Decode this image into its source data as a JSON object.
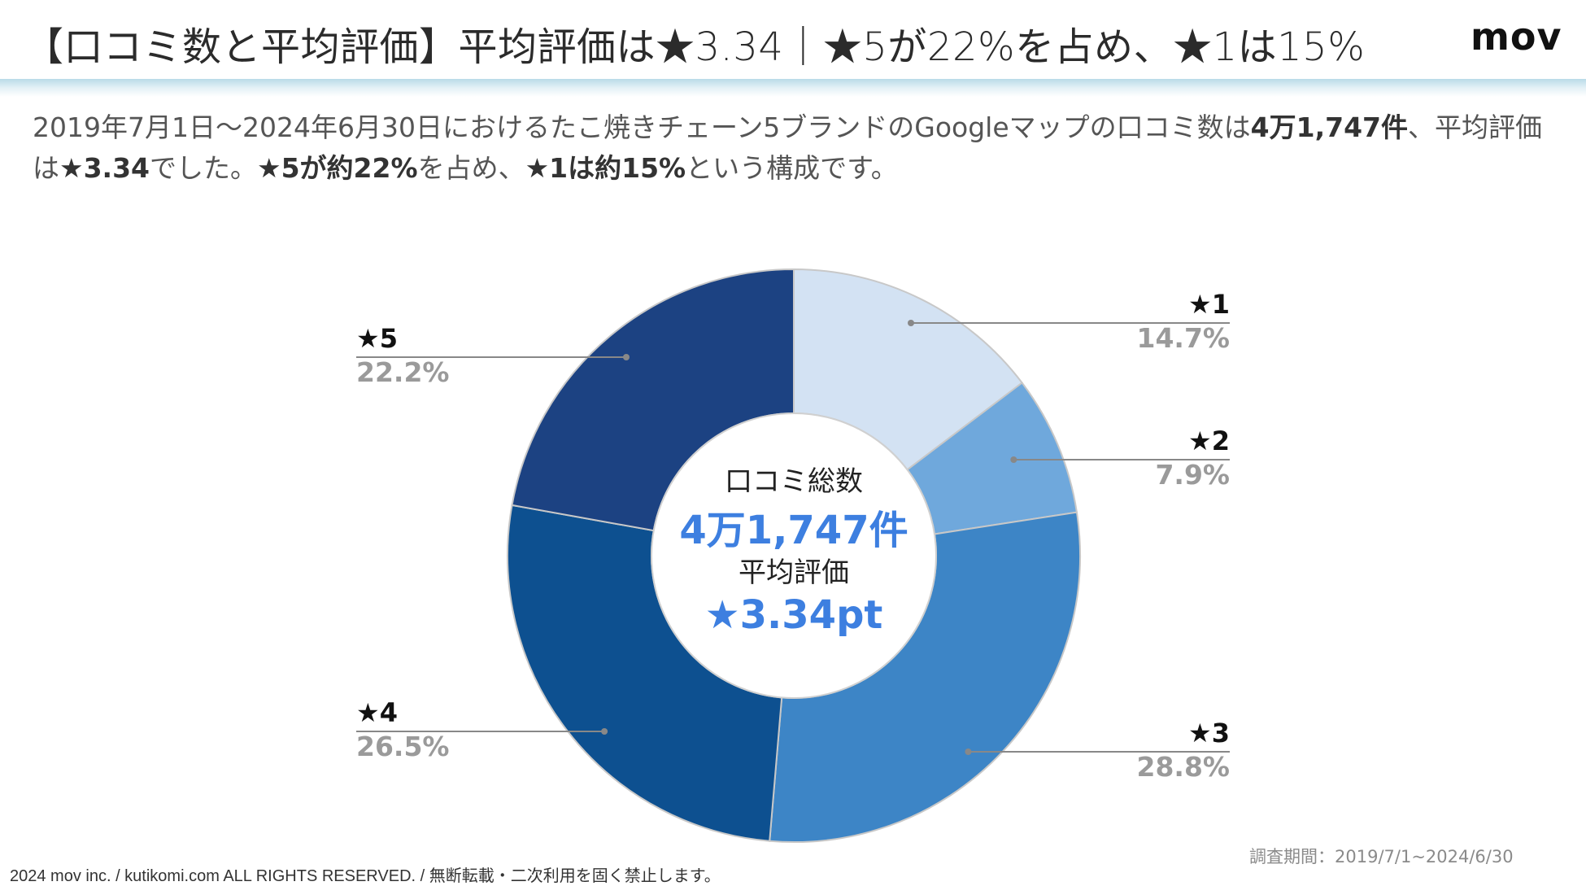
{
  "header": {
    "title": "【口コミ数と平均評価】平均評価は★3.34｜★5が22%を占め、★1は15%",
    "logo": "mov"
  },
  "lead": {
    "p1": "2019年7月1日〜2024年6月30日におけるたこ焼きチェーン5ブランドのGoogleマップの口コミ数は",
    "b1": "4万1,747件",
    "p2": "、平均評価は",
    "b2": "★3.34",
    "p3": "でした。",
    "b3": "★5が約22%",
    "p4": "を占め、",
    "b4": "★1は約15%",
    "p5": "という構成です。"
  },
  "chart_data": {
    "type": "pie",
    "donut": true,
    "categories": [
      "★1",
      "★2",
      "★3",
      "★4",
      "★5"
    ],
    "values": [
      14.7,
      7.9,
      28.8,
      26.5,
      22.2
    ],
    "value_labels": [
      "14.7%",
      "7.9%",
      "28.8%",
      "26.5%",
      "22.2%"
    ],
    "colors": [
      "#d3e2f3",
      "#6fa8dc",
      "#3d85c6",
      "#0d5090",
      "#1c4282"
    ],
    "center": {
      "label1": "口コミ総数",
      "value1": "4万1,747件",
      "label2": "平均評価",
      "value2": "★3.34pt"
    }
  },
  "colors": {
    "accent_blue": "#3d7fe0",
    "label_gray": "#9a9a9a",
    "leader_line": "#888888"
  },
  "footer": {
    "copyright": "2024 mov inc. / kutikomi.com ALL RIGHTS RESERVED. / 無断転載・二次利用を固く禁止します。",
    "period": "調査期間：2019/7/1~2024/6/30"
  }
}
